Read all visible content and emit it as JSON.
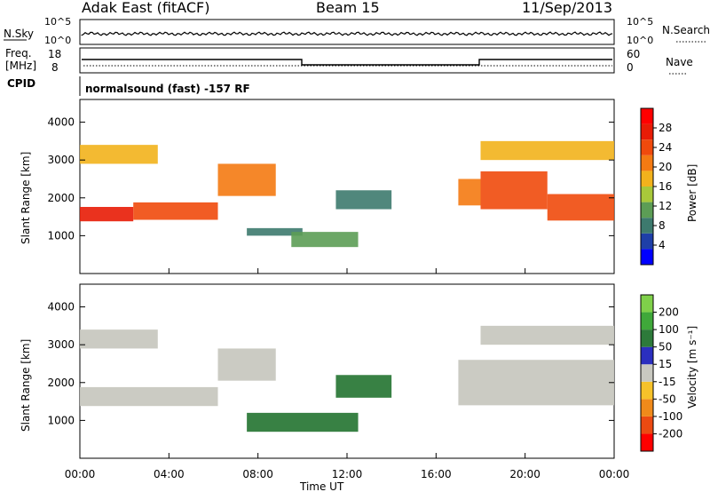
{
  "header": {
    "site": "Adak East (fitACF)",
    "beam": "Beam 15",
    "date": "11/Sep/2013"
  },
  "noise_panel": {
    "left_label": "N.Sky",
    "left_ticks": [
      "10^5",
      "10^0"
    ],
    "right_label": "N.Search",
    "right_ticks": [
      "10^5",
      "10^0"
    ]
  },
  "freq_panel": {
    "left_label_line1": "Freq.",
    "left_label_line2": "[MHz]",
    "left_ticks": [
      "18",
      "8"
    ],
    "right_label": "Nave",
    "right_ticks": [
      "60",
      "0"
    ]
  },
  "cpid_panel": {
    "label": "CPID",
    "text": "normalsound (fast) -157 RF"
  },
  "colors": {
    "power": [
      "#0000ff",
      "#1e3fa8",
      "#3d7a6e",
      "#5c9d55",
      "#a8c83a",
      "#f2b21c",
      "#f47a12",
      "#f04a0c",
      "#e81c06",
      "#ff0000"
    ],
    "velocity_pos": [
      "#2b2fbf",
      "#2d7a3a",
      "#3fa83a",
      "#7fd04a"
    ],
    "velocity_gray": "#c8c8c0",
    "velocity_neg": [
      "#f6c22a",
      "#f08a1a",
      "#ec4a12",
      "#ff0000"
    ]
  },
  "chart_data": [
    {
      "type": "heatmap",
      "quantity": "Power",
      "ylabel": "Slant Range [km]",
      "yticks": [
        "1000",
        "2000",
        "3000",
        "4000"
      ],
      "ylim": [
        0,
        4600
      ],
      "colorbar_label": "Power [dB]",
      "colorbar_ticks": [
        "4",
        "8",
        "12",
        "16",
        "20",
        "24",
        "28"
      ],
      "bands": [
        {
          "start": 0.0,
          "end": 2.4,
          "r0": 1380,
          "r1": 1760,
          "level": 8
        },
        {
          "start": 2.4,
          "end": 6.2,
          "r0": 1420,
          "r1": 1880,
          "level": 7
        },
        {
          "start": 6.2,
          "end": 8.8,
          "r0": 2050,
          "r1": 2900,
          "level": 6
        },
        {
          "start": 0.0,
          "end": 3.5,
          "r0": 2900,
          "r1": 3400,
          "level": 5
        },
        {
          "start": 7.5,
          "end": 10.0,
          "r0": 1000,
          "r1": 1200,
          "level": 2
        },
        {
          "start": 9.5,
          "end": 12.5,
          "r0": 700,
          "r1": 1100,
          "level": 3
        },
        {
          "start": 11.5,
          "end": 14.0,
          "r0": 1700,
          "r1": 2200,
          "level": 2
        },
        {
          "start": 17.0,
          "end": 18.0,
          "r0": 1800,
          "r1": 2500,
          "level": 6
        },
        {
          "start": 18.0,
          "end": 21.0,
          "r0": 1700,
          "r1": 2700,
          "level": 7
        },
        {
          "start": 21.0,
          "end": 24.0,
          "r0": 1400,
          "r1": 2100,
          "level": 7
        },
        {
          "start": 18.0,
          "end": 24.0,
          "r0": 3000,
          "r1": 3500,
          "level": 5
        }
      ]
    },
    {
      "type": "heatmap",
      "quantity": "Velocity",
      "ylabel": "Slant Range [km]",
      "yticks": [
        "1000",
        "2000",
        "3000",
        "4000"
      ],
      "ylim": [
        0,
        4600
      ],
      "xlabel": "Time UT",
      "xticks": [
        "00:00",
        "04:00",
        "08:00",
        "12:00",
        "16:00",
        "20:00",
        "00:00"
      ],
      "xlim_hours": [
        0,
        24
      ],
      "colorbar_label": "Velocity [m s⁻¹]",
      "colorbar_ticks": [
        "200",
        "100",
        "50",
        "15",
        "-15",
        "-50",
        "-100",
        "-200"
      ],
      "bands": [
        {
          "start": 0.0,
          "end": 6.2,
          "r0": 1380,
          "r1": 1880,
          "v": 0
        },
        {
          "start": 6.2,
          "end": 8.8,
          "r0": 2050,
          "r1": 2900,
          "v": 0
        },
        {
          "start": 0.0,
          "end": 3.5,
          "r0": 2900,
          "r1": 3400,
          "v": 0
        },
        {
          "start": 7.5,
          "end": 12.5,
          "r0": 700,
          "r1": 1200,
          "v": 40
        },
        {
          "start": 11.5,
          "end": 14.0,
          "r0": 1600,
          "r1": 2200,
          "v": 40
        },
        {
          "start": 17.0,
          "end": 24.0,
          "r0": 1400,
          "r1": 2600,
          "v": 0
        },
        {
          "start": 18.0,
          "end": 24.0,
          "r0": 3000,
          "r1": 3500,
          "v": 0
        }
      ]
    }
  ]
}
